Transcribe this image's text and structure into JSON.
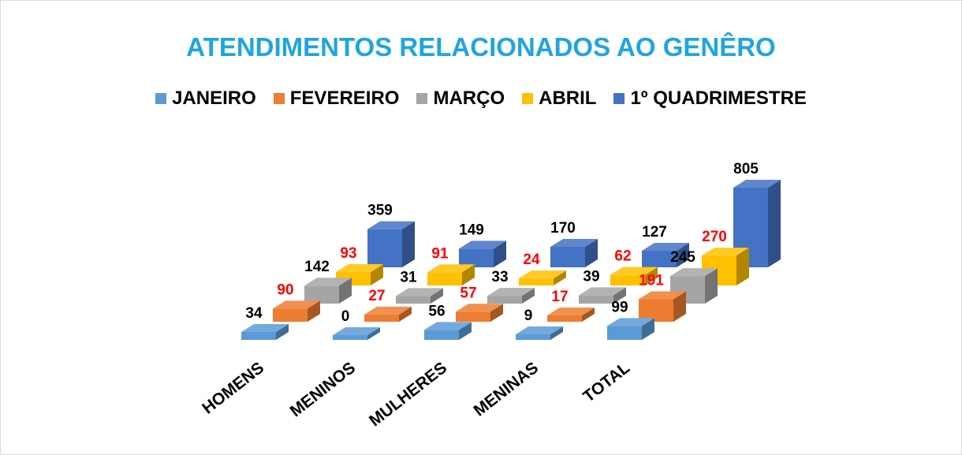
{
  "chart_data": {
    "type": "bar3d",
    "title": "ATENDIMENTOS RELACIONADOS AO GENÊRO",
    "categories": [
      "HOMENS",
      "MENINOS",
      "MULHERES",
      "MENINAS",
      "TOTAL"
    ],
    "series": [
      {
        "name": "JANEIRO",
        "color": "#5b9bd5",
        "label_color": "#000000",
        "values": [
          34,
          0,
          56,
          9,
          99
        ]
      },
      {
        "name": "FEVEREIRO",
        "color": "#ed7d31",
        "label_color": "#ff0000",
        "values": [
          90,
          27,
          57,
          17,
          191
        ]
      },
      {
        "name": "MARÇO",
        "color": "#a5a5a5",
        "label_color": "#000000",
        "values": [
          142,
          31,
          33,
          39,
          245
        ]
      },
      {
        "name": "ABRIL",
        "color": "#ffc000",
        "label_color": "#ff0000",
        "values": [
          93,
          91,
          24,
          62,
          270
        ]
      },
      {
        "name": "1º QUADRIMESTRE",
        "color": "#4472c4",
        "label_color": "#000000",
        "values": [
          359,
          149,
          170,
          127,
          805
        ]
      }
    ],
    "legend": "top"
  }
}
